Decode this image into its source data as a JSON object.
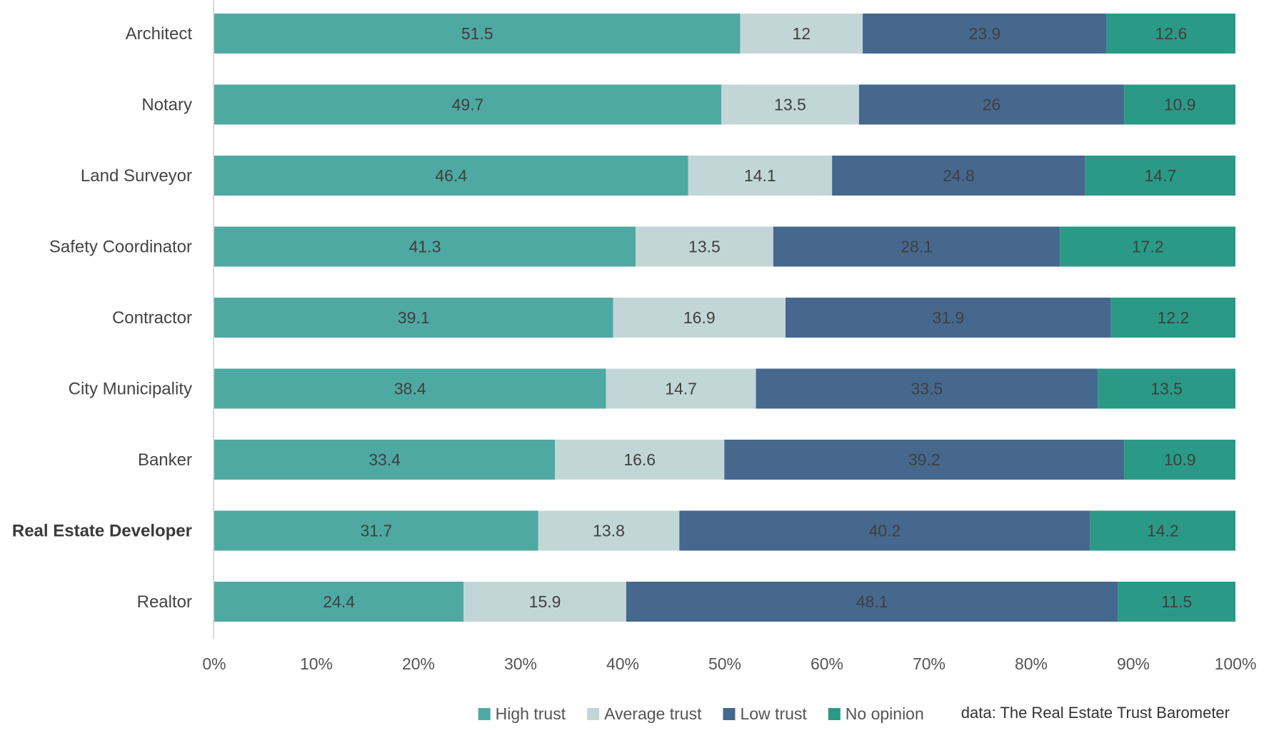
{
  "chart_data": {
    "type": "bar",
    "orientation": "horizontal",
    "stacked": true,
    "title": "",
    "xlabel": "",
    "ylabel": "",
    "xlim": [
      0,
      100
    ],
    "categories": [
      "Architect",
      "Notary",
      "Land Surveyor",
      "Safety Coordinator",
      "Contractor",
      "City Municipality",
      "Banker",
      "Real Estate Developer",
      "Realtor"
    ],
    "highlighted_category": "Real Estate Developer",
    "series": [
      {
        "name": "High trust",
        "color": "#4fa9a3",
        "values": [
          51.5,
          49.7,
          46.4,
          41.3,
          39.1,
          38.4,
          33.4,
          31.7,
          24.4
        ]
      },
      {
        "name": "Average trust",
        "color": "#c3d6d7",
        "values": [
          12,
          13.5,
          14.1,
          13.5,
          16.9,
          14.7,
          16.6,
          13.8,
          15.9
        ]
      },
      {
        "name": "Low trust",
        "color": "#46688e",
        "values": [
          23.9,
          26,
          24.8,
          28.1,
          31.9,
          33.5,
          39.2,
          40.2,
          48.1
        ]
      },
      {
        "name": "No opinion",
        "color": "#2a9a87",
        "values": [
          12.6,
          10.9,
          14.7,
          17.2,
          12.2,
          13.5,
          10.9,
          14.2,
          11.5
        ]
      }
    ],
    "x_ticks": [
      "0%",
      "10%",
      "20%",
      "30%",
      "40%",
      "50%",
      "60%",
      "70%",
      "80%",
      "90%",
      "100%"
    ],
    "legend_position": "bottom-right",
    "source": "data: The Real Estate Trust Barometer"
  }
}
